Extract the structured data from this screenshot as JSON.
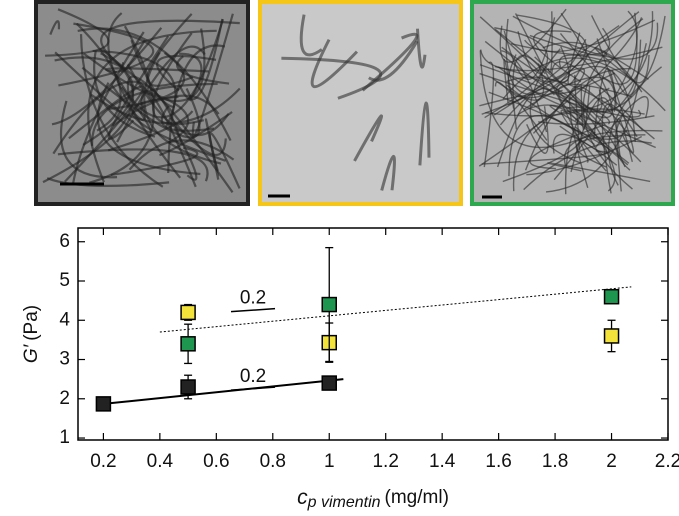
{
  "chart_data": {
    "type": "scatter",
    "xlabel": {
      "symbol": "c",
      "subscript": "p vimentin",
      "unit": "(mg/ml)"
    },
    "ylabel": {
      "symbol": "G′",
      "unit": "(Pa)"
    },
    "xlim": [
      0.11,
      2.2
    ],
    "ylim": [
      0.95,
      6.35
    ],
    "xticks": [
      0.2,
      0.4,
      0.6,
      0.8,
      1.0,
      1.2,
      1.4,
      1.6,
      1.8,
      2.0,
      2.2
    ],
    "yticks": [
      1,
      2,
      3,
      4,
      5,
      6
    ],
    "series": [
      {
        "color": "#222222",
        "x": [
          0.2,
          0.5,
          1.0
        ],
        "values": [
          1.87,
          2.3,
          2.4
        ],
        "errors": [
          0.1,
          0.3,
          0.1
        ]
      },
      {
        "color": "#f2e23a",
        "x": [
          0.5,
          1.0,
          2.0
        ],
        "values": [
          4.2,
          3.43,
          3.6
        ],
        "errors": [
          0.2,
          0.5,
          0.4
        ]
      },
      {
        "color": "#1e9650",
        "x": [
          0.5,
          1.0,
          2.0
        ],
        "values": [
          3.4,
          4.4,
          4.6
        ],
        "errors": [
          0.5,
          1.45,
          0.1
        ]
      }
    ],
    "fit_lines": [
      {
        "style": "solid",
        "x": [
          0.2,
          1.05
        ],
        "values": [
          1.87,
          2.5
        ]
      },
      {
        "style": "dotted",
        "x": [
          0.4,
          2.07
        ],
        "values": [
          3.7,
          4.85
        ]
      }
    ],
    "annotations": [
      {
        "text": "0.2",
        "x": 0.73,
        "y": 4.55
      },
      {
        "text": "0.2",
        "x": 0.73,
        "y": 2.55
      }
    ]
  }
}
